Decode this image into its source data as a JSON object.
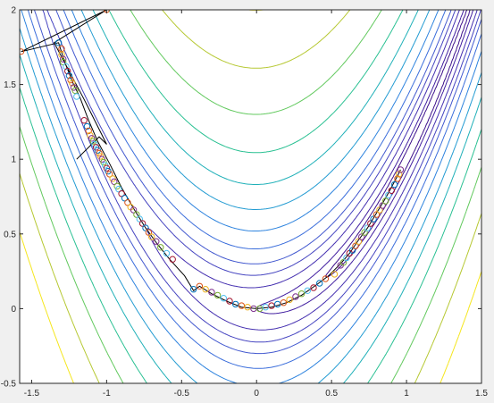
{
  "chart_data": {
    "type": "contour",
    "title": "",
    "xlabel": "",
    "ylabel": "",
    "xlim": [
      -1.58,
      1.5
    ],
    "ylim": [
      -0.5,
      2
    ],
    "xticks": [
      -1.5,
      -1,
      -0.5,
      0,
      0.5,
      1,
      1.5
    ],
    "xtick_labels": [
      "-1.5",
      "-1",
      "-0.5",
      "0",
      "0.5",
      "1",
      "1.5"
    ],
    "yticks": [
      -0.5,
      0,
      0.5,
      1,
      1.5,
      2
    ],
    "ytick_labels": [
      "-0.5",
      "0",
      "0.5",
      "1",
      "1.5",
      "2"
    ],
    "grid": false,
    "background": "#ffffff",
    "contours": {
      "function": "rosenbrock",
      "levels": [
        0.3,
        1,
        3,
        6,
        10,
        17,
        28,
        45,
        70,
        110,
        170,
        260,
        400
      ],
      "colors": [
        "#3c0f8a",
        "#421fa0",
        "#4530b0",
        "#4544c0",
        "#4258cf",
        "#3a6ddb",
        "#2d83de",
        "#229bd2",
        "#1fb0b8",
        "#29c092",
        "#62c95e",
        "#b6c832",
        "#f5e61e"
      ]
    },
    "path": {
      "color": "#000000",
      "points": [
        [
          -1.2,
          1
        ],
        [
          -1.05,
          1.15
        ],
        [
          -1.0,
          1.1
        ],
        [
          -1.1,
          1.3
        ],
        [
          -1.15,
          1.4
        ],
        [
          -1.35,
          1.78
        ],
        [
          -1.0,
          2.0
        ],
        [
          -1.57,
          1.72
        ],
        [
          -1.32,
          1.78
        ],
        [
          -1.28,
          1.65
        ],
        [
          -1.22,
          1.5
        ],
        [
          -1.18,
          1.42
        ],
        [
          -1.12,
          1.26
        ],
        [
          -1.06,
          1.12
        ],
        [
          -0.98,
          0.97
        ],
        [
          -0.9,
          0.81
        ],
        [
          -0.82,
          0.67
        ],
        [
          -0.74,
          0.54
        ],
        [
          -0.66,
          0.43
        ],
        [
          -0.58,
          0.33
        ],
        [
          -0.48,
          0.22
        ],
        [
          -0.42,
          0.12
        ],
        [
          -0.38,
          0.15
        ],
        [
          -0.3,
          0.1
        ],
        [
          -0.2,
          0.05
        ],
        [
          -0.1,
          0.01
        ],
        [
          0.0,
          0.0
        ],
        [
          0.1,
          0.01
        ],
        [
          0.2,
          0.04
        ],
        [
          0.3,
          0.09
        ],
        [
          0.4,
          0.16
        ],
        [
          0.48,
          0.22
        ],
        [
          0.5,
          0.24
        ],
        [
          0.56,
          0.3
        ],
        [
          0.62,
          0.37
        ],
        [
          0.68,
          0.46
        ],
        [
          0.74,
          0.54
        ],
        [
          0.8,
          0.64
        ],
        [
          0.86,
          0.74
        ],
        [
          0.92,
          0.85
        ],
        [
          0.96,
          0.93
        ]
      ]
    },
    "markers": {
      "style": "open-circle",
      "colors": [
        "#0072bd",
        "#d95319",
        "#edb120",
        "#7e2f8e",
        "#77ac30",
        "#4dbeee",
        "#a2142f"
      ],
      "points": [
        [
          -1.32,
          1.78
        ],
        [
          -1.3,
          1.74
        ],
        [
          -1.3,
          1.7
        ],
        [
          -1.29,
          1.67
        ],
        [
          -1.29,
          1.65
        ],
        [
          -1.27,
          1.62
        ],
        [
          -1.26,
          1.59
        ],
        [
          -1.25,
          1.56
        ],
        [
          -1.24,
          1.53
        ],
        [
          -1.23,
          1.51
        ],
        [
          -1.22,
          1.48
        ],
        [
          -1.21,
          1.46
        ],
        [
          -1.2,
          1.42
        ],
        [
          -1.15,
          1.26
        ],
        [
          -1.13,
          1.22
        ],
        [
          -1.12,
          1.19
        ],
        [
          -1.11,
          1.16
        ],
        [
          -1.1,
          1.14
        ],
        [
          -1.09,
          1.12
        ],
        [
          -1.08,
          1.1
        ],
        [
          -1.07,
          1.08
        ],
        [
          -1.06,
          1.06
        ],
        [
          -1.05,
          1.04
        ],
        [
          -1.04,
          1.02
        ],
        [
          -1.03,
          1.0
        ],
        [
          -1.02,
          0.98
        ],
        [
          -1.01,
          0.96
        ],
        [
          -1.0,
          0.94
        ],
        [
          -0.99,
          0.92
        ],
        [
          -0.98,
          0.9
        ],
        [
          -0.96,
          0.87
        ],
        [
          -0.95,
          0.85
        ],
        [
          -0.93,
          0.82
        ],
        [
          -0.92,
          0.8
        ],
        [
          -0.9,
          0.77
        ],
        [
          -0.88,
          0.74
        ],
        [
          -0.86,
          0.71
        ],
        [
          -0.84,
          0.68
        ],
        [
          -0.82,
          0.66
        ],
        [
          -0.8,
          0.63
        ],
        [
          -0.78,
          0.6
        ],
        [
          -0.76,
          0.57
        ],
        [
          -0.74,
          0.54
        ],
        [
          -0.72,
          0.51
        ],
        [
          -0.7,
          0.48
        ],
        [
          -0.67,
          0.45
        ],
        [
          -0.64,
          0.41
        ],
        [
          -0.6,
          0.37
        ],
        [
          -0.56,
          0.33
        ],
        [
          -0.42,
          0.13
        ],
        [
          -0.38,
          0.15
        ],
        [
          -0.34,
          0.13
        ],
        [
          -0.3,
          0.11
        ],
        [
          -0.26,
          0.09
        ],
        [
          -0.22,
          0.07
        ],
        [
          -0.18,
          0.05
        ],
        [
          -0.14,
          0.03
        ],
        [
          -0.1,
          0.02
        ],
        [
          -0.06,
          0.01
        ],
        [
          -0.02,
          0.0
        ],
        [
          0.02,
          0.0
        ],
        [
          0.06,
          0.01
        ],
        [
          0.1,
          0.02
        ],
        [
          0.14,
          0.03
        ],
        [
          0.18,
          0.04
        ],
        [
          0.22,
          0.06
        ],
        [
          0.26,
          0.08
        ],
        [
          0.3,
          0.1
        ],
        [
          0.34,
          0.12
        ],
        [
          0.38,
          0.14
        ],
        [
          0.42,
          0.17
        ],
        [
          0.46,
          0.2
        ],
        [
          0.52,
          0.23
        ],
        [
          0.56,
          0.29
        ],
        [
          0.58,
          0.31
        ],
        [
          0.6,
          0.34
        ],
        [
          0.62,
          0.37
        ],
        [
          0.64,
          0.39
        ],
        [
          0.66,
          0.42
        ],
        [
          0.68,
          0.45
        ],
        [
          0.7,
          0.48
        ],
        [
          0.72,
          0.51
        ],
        [
          0.74,
          0.54
        ],
        [
          0.76,
          0.57
        ],
        [
          0.78,
          0.6
        ],
        [
          0.8,
          0.63
        ],
        [
          0.82,
          0.66
        ],
        [
          0.84,
          0.69
        ],
        [
          0.86,
          0.72
        ],
        [
          0.88,
          0.76
        ],
        [
          0.9,
          0.79
        ],
        [
          0.92,
          0.83
        ],
        [
          0.94,
          0.87
        ],
        [
          0.95,
          0.9
        ],
        [
          0.96,
          0.93
        ]
      ]
    }
  }
}
